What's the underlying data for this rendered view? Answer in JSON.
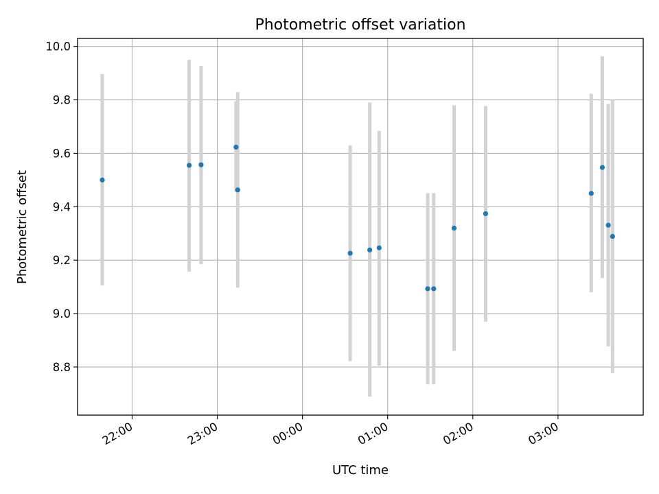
{
  "chart_data": {
    "type": "scatter",
    "title": "Photometric offset variation",
    "xlabel": "UTC time",
    "ylabel": "Photometric offset",
    "x_unit": "hours",
    "xlim": [
      -2.64,
      4.0
    ],
    "ylim": [
      8.62,
      10.03
    ],
    "grid": true,
    "x_ticks": [
      {
        "value": -2,
        "label": "22:00"
      },
      {
        "value": -1,
        "label": "23:00"
      },
      {
        "value": 0,
        "label": "00:00"
      },
      {
        "value": 1,
        "label": "01:00"
      },
      {
        "value": 2,
        "label": "02:00"
      },
      {
        "value": 3,
        "label": "03:00"
      }
    ],
    "y_ticks": [
      {
        "value": 8.8,
        "label": "8.8"
      },
      {
        "value": 9.0,
        "label": "9.0"
      },
      {
        "value": 9.2,
        "label": "9.2"
      },
      {
        "value": 9.4,
        "label": "9.4"
      },
      {
        "value": 9.6,
        "label": "9.6"
      },
      {
        "value": 9.8,
        "label": "9.8"
      },
      {
        "value": 10.0,
        "label": "10.0"
      }
    ],
    "marker_color": "#1f77b4",
    "errorbar_color": "#d3d3d3",
    "points": [
      {
        "x": -2.35,
        "y": 9.5,
        "ylow": 9.105,
        "yhigh": 9.897
      },
      {
        "x": -1.33,
        "y": 9.555,
        "ylow": 9.157,
        "yhigh": 9.95
      },
      {
        "x": -1.19,
        "y": 9.557,
        "ylow": 9.185,
        "yhigh": 9.927
      },
      {
        "x": -0.78,
        "y": 9.623,
        "ylow": 9.455,
        "yhigh": 9.795
      },
      {
        "x": -0.76,
        "y": 9.463,
        "ylow": 9.097,
        "yhigh": 9.829
      },
      {
        "x": 0.56,
        "y": 9.226,
        "ylow": 8.822,
        "yhigh": 9.63
      },
      {
        "x": 0.79,
        "y": 9.238,
        "ylow": 8.689,
        "yhigh": 9.79
      },
      {
        "x": 0.9,
        "y": 9.246,
        "ylow": 8.805,
        "yhigh": 9.684
      },
      {
        "x": 1.47,
        "y": 9.093,
        "ylow": 8.735,
        "yhigh": 9.451
      },
      {
        "x": 1.54,
        "y": 9.093,
        "ylow": 8.735,
        "yhigh": 9.451
      },
      {
        "x": 1.78,
        "y": 9.32,
        "ylow": 8.86,
        "yhigh": 9.78
      },
      {
        "x": 2.15,
        "y": 9.374,
        "ylow": 8.97,
        "yhigh": 9.777
      },
      {
        "x": 3.39,
        "y": 9.45,
        "ylow": 9.08,
        "yhigh": 9.823
      },
      {
        "x": 3.52,
        "y": 9.547,
        "ylow": 9.133,
        "yhigh": 9.963
      },
      {
        "x": 3.59,
        "y": 9.331,
        "ylow": 8.877,
        "yhigh": 9.785
      },
      {
        "x": 3.64,
        "y": 9.289,
        "ylow": 8.777,
        "yhigh": 9.8
      }
    ]
  }
}
